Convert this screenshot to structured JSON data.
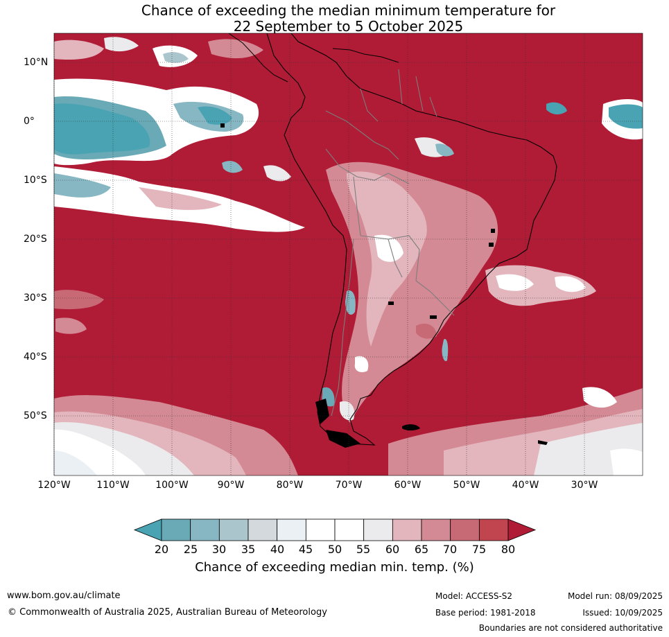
{
  "title": {
    "line1": "Chance of exceeding the median minimum temperature for",
    "line2": "22 September to 5 October 2025"
  },
  "lat_labels": [
    "10°N",
    "0°",
    "10°S",
    "20°S",
    "30°S",
    "40°S",
    "50°S"
  ],
  "lon_labels": [
    "120°W",
    "110°W",
    "100°W",
    "90°W",
    "80°W",
    "70°W",
    "60°W",
    "50°W",
    "40°W",
    "30°W"
  ],
  "colorbar": {
    "ticks": [
      "20",
      "25",
      "30",
      "35",
      "40",
      "45",
      "50",
      "55",
      "60",
      "65",
      "70",
      "75",
      "80"
    ],
    "colors": [
      "#4aa3b3",
      "#6aaab7",
      "#88b7c4",
      "#abc5cc",
      "#d3d9dc",
      "#eaf0f3",
      "#ffffff",
      "#ffffff",
      "#ebebed",
      "#e3b6bd",
      "#d48a95",
      "#c86a75",
      "#c1454f",
      "#b01b36"
    ],
    "label": "Chance of exceeding median min. temp. (%)"
  },
  "colors": {
    "dominant": "#b01b36",
    "cool": "#4aa3b3"
  },
  "footer": {
    "website": "www.bom.gov.au/climate",
    "copyright": "© Commonwealth of Australia 2025, Australian Bureau of Meteorology",
    "model": "Model: ACCESS-S2",
    "model_run": "Model run: 08/09/2025",
    "base_period": "Base period: 1981-2018",
    "issued": "Issued: 10/09/2025",
    "boundaries": "Boundaries are not considered authoritative"
  }
}
